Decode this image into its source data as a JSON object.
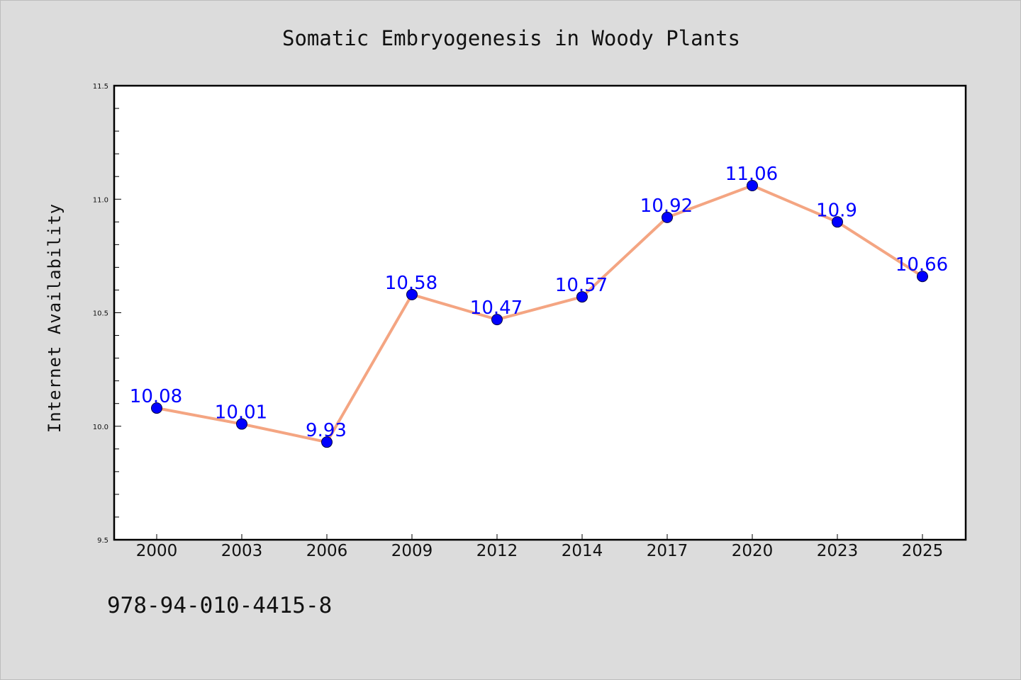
{
  "chart_data": {
    "type": "line",
    "title": "Somatic Embryogenesis in Woody Plants",
    "xlabel": "",
    "ylabel": "Internet Availability",
    "categories": [
      "2000",
      "2003",
      "2006",
      "2009",
      "2012",
      "2014",
      "2017",
      "2020",
      "2023",
      "2025"
    ],
    "series": [
      {
        "values": [
          10.08,
          10.01,
          9.93,
          10.58,
          10.47,
          10.57,
          10.92,
          11.06,
          10.9,
          10.66
        ],
        "labels": [
          "10.08",
          "10.01",
          "9.93",
          "10.58",
          "10.47",
          "10.57",
          "10.92",
          "11.06",
          "10.9",
          "10.66"
        ],
        "line_color": "#f4a582",
        "marker_color": "#0000ff"
      }
    ],
    "ylim": [
      9.5,
      11.5
    ],
    "yticks": [
      "9.5",
      "10.0",
      "10.5",
      "11.0",
      "11.5"
    ],
    "grid": false,
    "legend": "none"
  },
  "footnote": "978-94-010-4415-8",
  "colors": {
    "background": "#dcdcdc",
    "plot_area": "#ffffff",
    "line": "#f4a582",
    "marker": "#0000ff",
    "data_label": "#0000ff"
  }
}
